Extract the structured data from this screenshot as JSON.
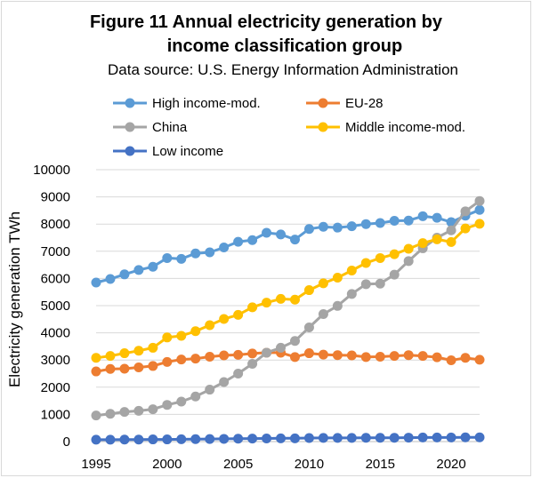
{
  "chart_data": {
    "type": "line",
    "title_line1": "Figure 11  Annual electricity generation by",
    "title_line2": "income classification group",
    "subtitle": "Data source: U.S. Energy Information Administration",
    "xlabel": "",
    "ylabel": "Electricity generation   TWh",
    "xlim": [
      1995,
      2022
    ],
    "ylim": [
      0,
      10000
    ],
    "x_ticks": [
      1995,
      2000,
      2005,
      2010,
      2015,
      2020
    ],
    "y_ticks": [
      0,
      1000,
      2000,
      3000,
      4000,
      5000,
      6000,
      7000,
      8000,
      9000,
      10000
    ],
    "grid": "horizontal",
    "legend_position": "top",
    "x": [
      1995,
      1996,
      1997,
      1998,
      1999,
      2000,
      2001,
      2002,
      2003,
      2004,
      2005,
      2006,
      2007,
      2008,
      2009,
      2010,
      2011,
      2012,
      2013,
      2014,
      2015,
      2016,
      2017,
      2018,
      2019,
      2020,
      2021,
      2022
    ],
    "series": [
      {
        "name": "High income-mod.",
        "color": "#5b9bd5",
        "values": [
          5850,
          5980,
          6150,
          6310,
          6430,
          6750,
          6720,
          6920,
          6960,
          7140,
          7350,
          7410,
          7680,
          7620,
          7430,
          7820,
          7900,
          7870,
          7920,
          8000,
          8040,
          8120,
          8130,
          8290,
          8230,
          8070,
          8310,
          8520
        ]
      },
      {
        "name": "EU-28",
        "color": "#ed7d31",
        "values": [
          2580,
          2670,
          2680,
          2730,
          2780,
          2930,
          3020,
          3050,
          3120,
          3170,
          3190,
          3240,
          3270,
          3270,
          3110,
          3250,
          3200,
          3180,
          3170,
          3110,
          3120,
          3150,
          3180,
          3150,
          3100,
          2990,
          3080,
          3010
        ]
      },
      {
        "name": "China",
        "color": "#a5a5a5",
        "values": [
          960,
          1020,
          1090,
          1130,
          1190,
          1350,
          1470,
          1660,
          1910,
          2190,
          2500,
          2860,
          3270,
          3450,
          3700,
          4200,
          4690,
          4990,
          5430,
          5790,
          5810,
          6140,
          6640,
          7110,
          7500,
          7770,
          8470,
          8850
        ]
      },
      {
        "name": "Middle income-mod.",
        "color": "#ffc000",
        "values": [
          3080,
          3150,
          3250,
          3340,
          3450,
          3830,
          3890,
          4060,
          4280,
          4510,
          4660,
          4940,
          5110,
          5250,
          5220,
          5570,
          5820,
          6030,
          6290,
          6570,
          6750,
          6890,
          7090,
          7300,
          7440,
          7340,
          7840,
          8010
        ]
      },
      {
        "name": "Low income",
        "color": "#4472c4",
        "values": [
          70,
          70,
          75,
          75,
          80,
          80,
          85,
          90,
          95,
          100,
          105,
          110,
          115,
          120,
          120,
          130,
          135,
          135,
          135,
          140,
          140,
          140,
          145,
          150,
          150,
          150,
          155,
          155
        ]
      }
    ]
  }
}
